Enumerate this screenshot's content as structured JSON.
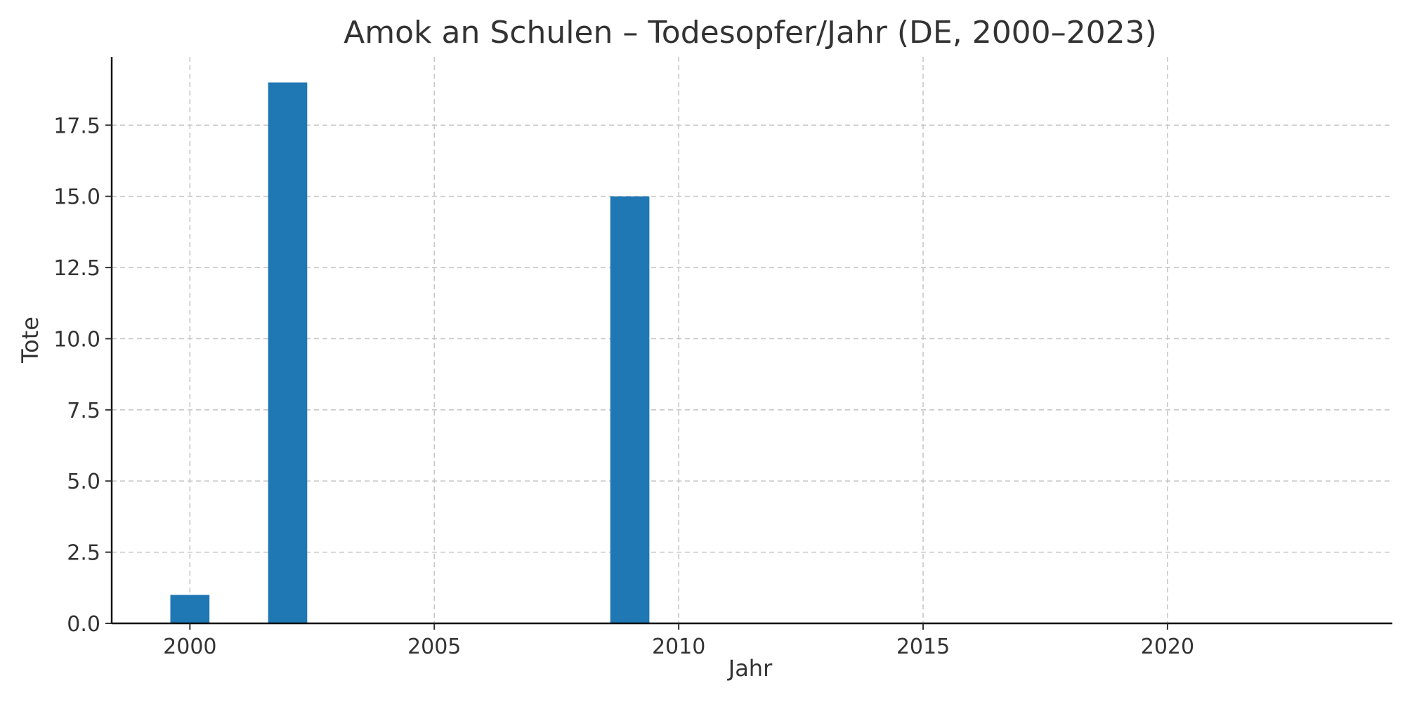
{
  "chart_data": {
    "type": "bar",
    "title": "Amok an Schulen – Todesopfer/Jahr (DE, 2000–2023)",
    "xlabel": "Jahr",
    "ylabel": "Tote",
    "x": [
      2000,
      2001,
      2002,
      2003,
      2004,
      2005,
      2006,
      2007,
      2008,
      2009,
      2010,
      2011,
      2012,
      2013,
      2014,
      2015,
      2016,
      2017,
      2018,
      2019,
      2020,
      2021,
      2022,
      2023
    ],
    "values": [
      1,
      0,
      19,
      0,
      0,
      0,
      0,
      0,
      0,
      15,
      0,
      0,
      0,
      0,
      0,
      0,
      0,
      0,
      0,
      0,
      0,
      0,
      0,
      0
    ],
    "xlim": [
      1998.4,
      2024.6
    ],
    "ylim": [
      0,
      19.9
    ],
    "xticks": [
      2000,
      2005,
      2010,
      2015,
      2020
    ],
    "xtick_labels": [
      "2000",
      "2005",
      "2010",
      "2015",
      "2020"
    ],
    "yticks": [
      0,
      2.5,
      5,
      7.5,
      10,
      12.5,
      15,
      17.5
    ],
    "ytick_labels": [
      "0.0",
      "2.5",
      "5.0",
      "7.5",
      "10.0",
      "12.5",
      "15.0",
      "17.5"
    ],
    "bar_width_years": 0.8,
    "grid": true,
    "bar_color": "#1f77b4"
  }
}
